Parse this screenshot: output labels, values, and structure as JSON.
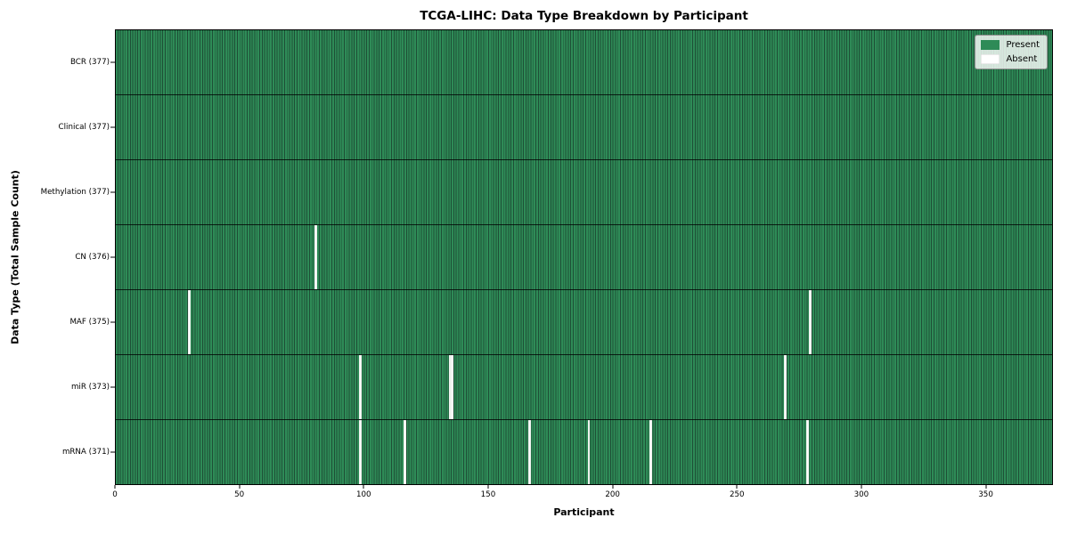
{
  "title": "TCGA-LIHC: Data Type Breakdown by Participant",
  "legend": {
    "present_label": "Present",
    "absent_label": "Absent"
  },
  "colors": {
    "present": "#2e8b57",
    "present_edge": "#1e4f36",
    "absent": "#ffffff",
    "plot_border": "#000000",
    "legend_border": "#8f8f8f"
  },
  "chart_data": {
    "type": "heatmap",
    "title": "TCGA-LIHC: Data Type Breakdown by Participant",
    "xlabel": "Participant",
    "ylabel": "Data Type (Total Sample Count)",
    "xlim": [
      0,
      377
    ],
    "x_ticks": [
      0,
      50,
      100,
      150,
      200,
      250,
      300,
      350
    ],
    "total_participants": 377,
    "grid": false,
    "legend_position": "upper right",
    "legend_entries": [
      {
        "label": "Present",
        "color": "#2e8b57"
      },
      {
        "label": "Absent",
        "color": "#ffffff"
      }
    ],
    "rows": [
      {
        "label": "BCR (377)",
        "data_type": "BCR",
        "present_count": 377,
        "absent_count": 0,
        "absent_participants": []
      },
      {
        "label": "Clinical (377)",
        "data_type": "Clinical",
        "present_count": 377,
        "absent_count": 0,
        "absent_participants": []
      },
      {
        "label": "Methylation (377)",
        "data_type": "Methylation",
        "present_count": 377,
        "absent_count": 0,
        "absent_participants": []
      },
      {
        "label": "CN (376)",
        "data_type": "CN",
        "present_count": 376,
        "absent_count": 1,
        "absent_participants": [
          80
        ]
      },
      {
        "label": "MAF (375)",
        "data_type": "MAF",
        "present_count": 375,
        "absent_count": 2,
        "absent_participants": [
          29,
          279
        ]
      },
      {
        "label": "miR (373)",
        "data_type": "miR",
        "present_count": 373,
        "absent_count": 4,
        "absent_participants": [
          98,
          134,
          135,
          269
        ]
      },
      {
        "label": "mRNA (371)",
        "data_type": "mRNA",
        "present_count": 371,
        "absent_count": 6,
        "absent_participants": [
          98,
          116,
          166,
          190,
          215,
          278
        ]
      }
    ]
  }
}
